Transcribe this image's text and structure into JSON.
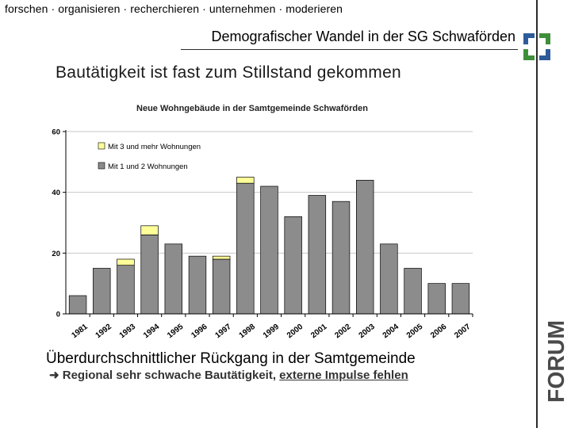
{
  "header": {
    "tagline": "forschen · organisieren · recherchieren · unternehmen · moderieren",
    "subtitle": "Demografischer Wandel in der SG Schwaförden"
  },
  "headline": "Bautätigkeit ist fast zum Stillstand gekommen",
  "conclusion": {
    "line1": "Überdurchschnittlicher Rückgang in der Samtgemeinde",
    "line2_plain": "Regional sehr schwache Bautätigkeit,",
    "line2_underlined": "externe Impulse fehlen"
  },
  "logo": {
    "text": "FORUM"
  },
  "colors": {
    "accent_blue": "#2e5b9a",
    "accent_green": "#3f8f3a",
    "bar_lower": "#8c8c8c",
    "bar_upper": "#ffff99",
    "plot_bg": "#ffffff",
    "grid": "#c8c8c8"
  },
  "chart_data": {
    "type": "bar",
    "stacked": true,
    "title": "Neue Wohngebäude in der Samtgemeinde Schwaförden",
    "xlabel": "",
    "ylabel": "",
    "ylim": [
      0,
      60
    ],
    "yticks": [
      0,
      20,
      40,
      60
    ],
    "legend_position": "top-left",
    "categories": [
      "1981",
      "1992",
      "1993",
      "1994",
      "1995",
      "1996",
      "1997",
      "1998",
      "1999",
      "2000",
      "2001",
      "2002",
      "2003",
      "2004",
      "2005",
      "2006",
      "2007"
    ],
    "series": [
      {
        "name": "Mit 1 und 2 Wohnungen",
        "values": [
          6,
          15,
          16,
          26,
          23,
          19,
          18,
          43,
          42,
          32,
          39,
          37,
          44,
          23,
          15,
          10,
          10
        ]
      },
      {
        "name": "Mit 3 und mehr Wohnungen",
        "values": [
          0,
          0,
          2,
          3,
          0,
          0,
          1,
          2,
          0,
          0,
          0,
          0,
          0,
          0,
          0,
          0,
          0
        ]
      }
    ]
  }
}
